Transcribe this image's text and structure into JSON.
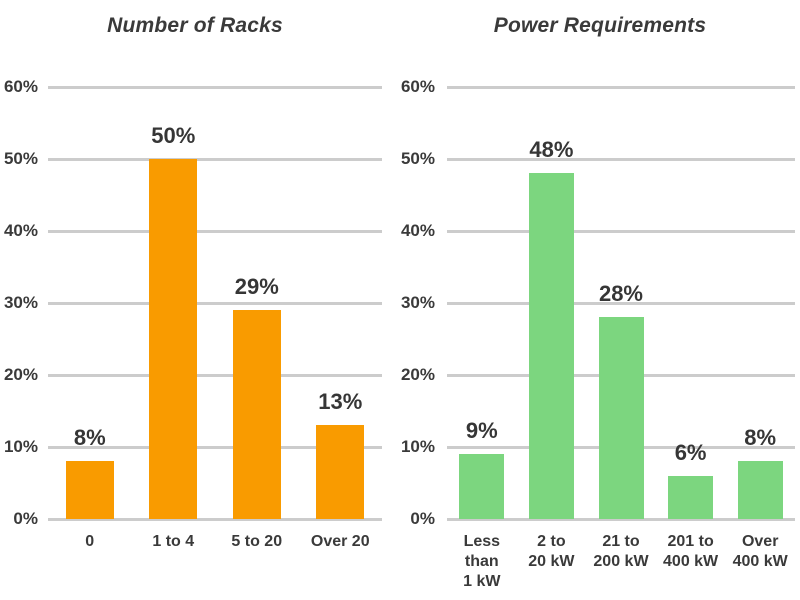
{
  "page": {
    "background": "#ffffff",
    "text_color": "#3a3a3a",
    "gridline_color": "#cccccc"
  },
  "chart_data": [
    {
      "type": "bar",
      "title": "Number of Racks",
      "categories": [
        "0",
        "1 to 4",
        "5 to 20",
        "Over 20"
      ],
      "values": [
        8,
        50,
        29,
        13
      ],
      "value_labels": [
        "8%",
        "50%",
        "29%",
        "13%"
      ],
      "bar_color": "#F99B00",
      "xlabel": "",
      "ylabel": "",
      "ylim": [
        0,
        60
      ],
      "ytick_interval": 10,
      "ytick_labels": [
        "0%",
        "10%",
        "20%",
        "30%",
        "40%",
        "50%",
        "60%"
      ],
      "grid": true,
      "legend": false
    },
    {
      "type": "bar",
      "title": "Power Requirements",
      "categories": [
        "Less than\n1 kW",
        "2 to\n20 kW",
        "21 to\n200 kW",
        "201 to\n400 kW",
        "Over\n400 kW"
      ],
      "values": [
        9,
        48,
        28,
        6,
        8
      ],
      "value_labels": [
        "9%",
        "48%",
        "28%",
        "6%",
        "8%"
      ],
      "bar_color": "#7CD67F",
      "xlabel": "",
      "ylabel": "",
      "ylim": [
        0,
        60
      ],
      "ytick_interval": 10,
      "ytick_labels": [
        "0%",
        "10%",
        "20%",
        "30%",
        "40%",
        "50%",
        "60%"
      ],
      "grid": true,
      "legend": false
    }
  ]
}
